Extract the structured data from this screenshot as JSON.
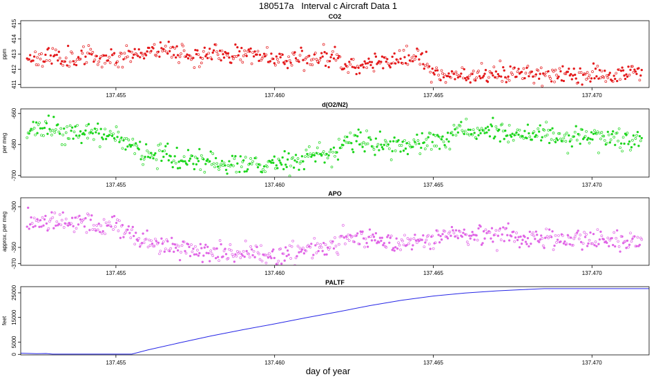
{
  "title": "180517a   Interval c Aircraft Data 1",
  "x_label": "day of year",
  "chart_data": [
    {
      "type": "scatter",
      "title": "CO2",
      "ylabel": "ppm",
      "color": "#e41a1c",
      "ylim": [
        410.8,
        415.2
      ],
      "yticks": [
        411,
        412,
        413,
        414,
        415
      ],
      "xlim": [
        137.452,
        137.4718
      ],
      "xticks": [
        137.455,
        137.46,
        137.465,
        137.47
      ],
      "xtick_labels": [
        "137.455",
        "137.460",
        "137.465",
        "137.470"
      ],
      "trend_x": [
        137.452,
        137.455,
        137.4565,
        137.4575,
        137.459,
        137.46,
        137.461,
        137.4618,
        137.4622,
        137.463,
        137.4645,
        137.4652,
        137.467,
        137.469,
        137.4718
      ],
      "trend_y": [
        412.8,
        412.8,
        413.4,
        412.9,
        413.0,
        412.8,
        412.7,
        412.9,
        412.2,
        412.4,
        412.8,
        411.7,
        411.7,
        411.6,
        411.8
      ],
      "noise": 0.32,
      "n_points": 600,
      "seed": 11
    },
    {
      "type": "scatter",
      "title": "d(O2/N2)",
      "ylabel": "per meg",
      "color": "#1fd61f",
      "ylim": [
        -701,
        -657
      ],
      "yticks": [
        -700,
        -680,
        -660
      ],
      "xlim": [
        137.452,
        137.4718
      ],
      "xticks": [
        137.455,
        137.46,
        137.465,
        137.47
      ],
      "xtick_labels": [
        "137.455",
        "137.460",
        "137.465",
        "137.470"
      ],
      "trend_x": [
        137.452,
        137.453,
        137.455,
        137.456,
        137.457,
        137.4585,
        137.46,
        137.461,
        137.462,
        137.4622,
        137.4635,
        137.465,
        137.466,
        137.4718
      ],
      "trend_y": [
        -672,
        -670,
        -676,
        -685,
        -690,
        -692,
        -694,
        -688,
        -686,
        -677,
        -681,
        -678,
        -672,
        -677
      ],
      "noise": 3.6,
      "n_points": 600,
      "seed": 23
    },
    {
      "type": "scatter",
      "title": "APO",
      "ylabel": "approx. per meg",
      "color": "#e066e6",
      "ylim": [
        -372,
        -289
      ],
      "yticks": [
        -370,
        -350,
        -300
      ],
      "xlim": [
        137.452,
        137.4718
      ],
      "xticks": [
        137.455,
        137.46,
        137.465,
        137.47
      ],
      "xtick_labels": [
        "137.455",
        "137.460",
        "137.465",
        "137.470"
      ],
      "trend_x": [
        137.452,
        137.453,
        137.455,
        137.456,
        137.457,
        137.4585,
        137.46,
        137.461,
        137.462,
        137.4622,
        137.4635,
        137.465,
        137.466,
        137.4718
      ],
      "trend_y": [
        -318,
        -315,
        -325,
        -343,
        -352,
        -358,
        -360,
        -352,
        -348,
        -335,
        -343,
        -340,
        -333,
        -343
      ],
      "noise": 6.5,
      "n_points": 600,
      "seed": 37
    },
    {
      "type": "line",
      "title": "PALTF",
      "ylabel": "feet",
      "color": "#2424e6",
      "ylim": [
        -200,
        27500
      ],
      "yticks": [
        0,
        5000,
        15000,
        25000
      ],
      "xlim": [
        137.452,
        137.4718
      ],
      "xticks": [
        137.455,
        137.46,
        137.465,
        137.47
      ],
      "xtick_labels": [
        "137.455",
        "137.460",
        "137.465",
        "137.470"
      ],
      "x": [
        137.452,
        137.4525,
        137.4528,
        137.453,
        137.4535,
        137.454,
        137.455,
        137.4555,
        137.456,
        137.457,
        137.458,
        137.459,
        137.46,
        137.461,
        137.462,
        137.463,
        137.464,
        137.465,
        137.466,
        137.467,
        137.468,
        137.4685,
        137.469,
        137.47,
        137.4718
      ],
      "y": [
        500,
        300,
        350,
        100,
        100,
        100,
        100,
        100,
        1800,
        4700,
        7500,
        10000,
        12400,
        14900,
        17300,
        19800,
        22000,
        23700,
        24900,
        25800,
        26400,
        26700,
        26700,
        26700,
        26700
      ]
    }
  ]
}
